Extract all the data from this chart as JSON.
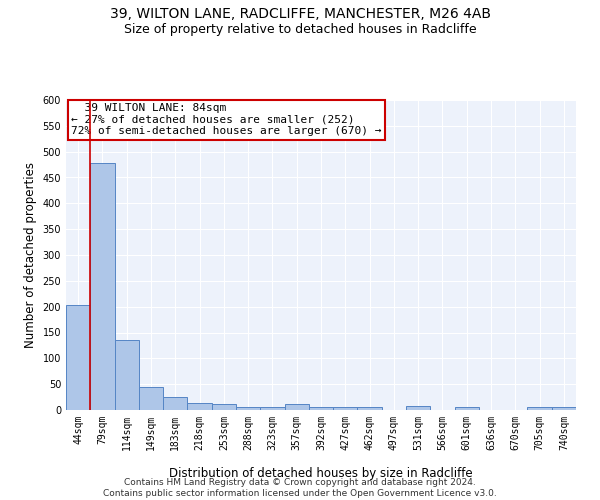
{
  "title_line1": "39, WILTON LANE, RADCLIFFE, MANCHESTER, M26 4AB",
  "title_line2": "Size of property relative to detached houses in Radcliffe",
  "xlabel": "Distribution of detached houses by size in Radcliffe",
  "ylabel": "Number of detached properties",
  "bin_labels": [
    "44sqm",
    "79sqm",
    "114sqm",
    "149sqm",
    "183sqm",
    "218sqm",
    "253sqm",
    "288sqm",
    "323sqm",
    "357sqm",
    "392sqm",
    "427sqm",
    "462sqm",
    "497sqm",
    "531sqm",
    "566sqm",
    "601sqm",
    "636sqm",
    "670sqm",
    "705sqm",
    "740sqm"
  ],
  "bar_heights": [
    203,
    478,
    135,
    44,
    25,
    13,
    11,
    6,
    6,
    11,
    6,
    5,
    5,
    0,
    8,
    0,
    5,
    0,
    0,
    5,
    5
  ],
  "bar_color": "#aec6e8",
  "bar_edge_color": "#5585c5",
  "bar_width": 1.0,
  "property_label": "39 WILTON LANE: 84sqm",
  "annotation_line2": "← 27% of detached houses are smaller (252)",
  "annotation_line3": "72% of semi-detached houses are larger (670) →",
  "red_line_x": 0.5,
  "red_line_color": "#cc0000",
  "annotation_box_color": "#ffffff",
  "annotation_box_edge": "#cc0000",
  "ylim": [
    0,
    600
  ],
  "yticks": [
    0,
    50,
    100,
    150,
    200,
    250,
    300,
    350,
    400,
    450,
    500,
    550,
    600
  ],
  "background_color": "#edf2fb",
  "grid_color": "#ffffff",
  "footer_line1": "Contains HM Land Registry data © Crown copyright and database right 2024.",
  "footer_line2": "Contains public sector information licensed under the Open Government Licence v3.0.",
  "title1_fontsize": 10,
  "title2_fontsize": 9,
  "axis_label_fontsize": 8.5,
  "tick_fontsize": 7,
  "annotation_fontsize": 8,
  "footer_fontsize": 6.5
}
